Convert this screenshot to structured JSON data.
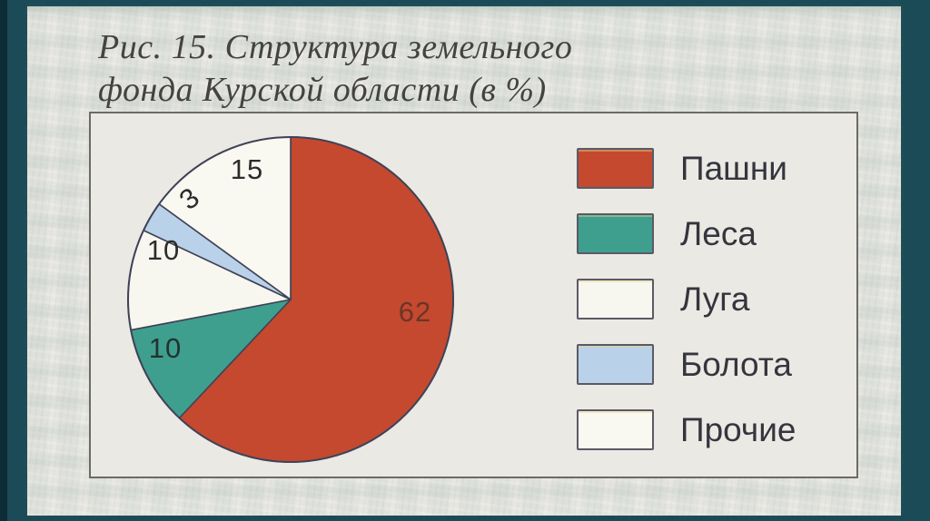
{
  "figure": {
    "caption_line1": "Рис. 15. Структура земельного",
    "caption_line2": "фонда Курской области (в %)"
  },
  "chart_data": {
    "type": "pie",
    "title": "Рис. 15. Структура земельного фонда Курской области (в %)",
    "unit": "%",
    "categories": [
      "Пашни",
      "Леса",
      "Луга",
      "Болота",
      "Прочие"
    ],
    "values": [
      62,
      10,
      10,
      3,
      15
    ],
    "colors": [
      "#c4492f",
      "#3f9f8e",
      "#f8f7ef",
      "#b9d1e9",
      "#f9f8f1"
    ],
    "start_angle_deg": 0,
    "direction": "clockwise",
    "legend_position": "right",
    "slice_value_labels": [
      "62",
      "10",
      "10",
      "3",
      "15"
    ]
  },
  "palette": {
    "frame_teal": "#1b4b57",
    "frame_edge_dark": "#0c2c37",
    "paper": "#e9e8e4",
    "chart_panel": "#eae9e4",
    "box_border": "#6b6a64",
    "pie_outline": "#3f4257",
    "value_label_dark": "#2d2c2a",
    "value_label_on_red": "#6f4c41",
    "caption_color": "#45433f",
    "legend_text": "#35353d",
    "swatch_border": "#5a5a66"
  }
}
